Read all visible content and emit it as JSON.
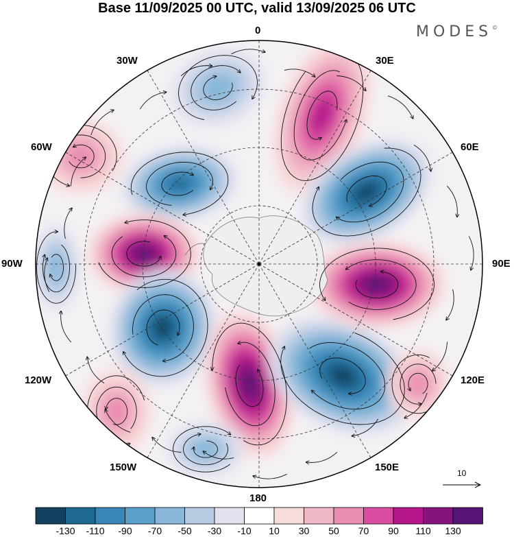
{
  "title": "Base 11/09/2025 00 UTC, valid 13/09/2025 06 UTC",
  "brand": {
    "name": "MODES",
    "mark": "©"
  },
  "longitude_labels": {
    "lon_0": "0",
    "lon_30e": "30E",
    "lon_60e": "60E",
    "lon_90e": "90E",
    "lon_120e": "120E",
    "lon_150e": "150E",
    "lon_180": "180",
    "lon_150w": "150W",
    "lon_120w": "120W",
    "lon_90w": "90W",
    "lon_60w": "60W",
    "lon_30w": "30W"
  },
  "reference_vector": {
    "label": "10"
  },
  "colorbar": {
    "tick_labels": [
      "-130",
      "-110",
      "-90",
      "-70",
      "-50",
      "-30",
      "-10",
      "10",
      "30",
      "50",
      "70",
      "90",
      "110",
      "130"
    ],
    "colors": [
      "#123f5e",
      "#1f6a95",
      "#3886b8",
      "#5aa0cb",
      "#88b7d9",
      "#b7cbe3",
      "#e2e2ef",
      "#ffffff",
      "#f8dcdc",
      "#f1b9c6",
      "#ea8db3",
      "#d94ea0",
      "#b5168a",
      "#86147f",
      "#561476"
    ]
  },
  "anomaly_centers": [
    {
      "sign": "negative",
      "strength": 2
    },
    {
      "sign": "positive",
      "strength": 4
    },
    {
      "sign": "negative",
      "strength": 5
    },
    {
      "sign": "positive",
      "strength": 6
    },
    {
      "sign": "negative",
      "strength": 6
    },
    {
      "sign": "positive",
      "strength": 6
    },
    {
      "sign": "negative",
      "strength": 6
    },
    {
      "sign": "positive",
      "strength": 6
    },
    {
      "sign": "negative",
      "strength": 6
    },
    {
      "sign": "positive",
      "strength": 2
    },
    {
      "sign": "negative",
      "strength": 2
    },
    {
      "sign": "positive",
      "strength": 2
    },
    {
      "sign": "negative",
      "strength": 2
    },
    {
      "sign": "positive",
      "strength": 2
    }
  ]
}
